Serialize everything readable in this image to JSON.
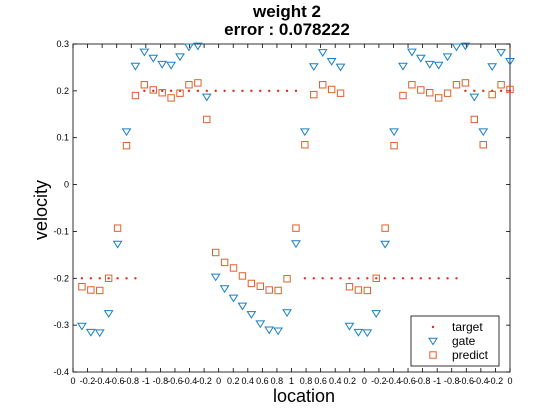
{
  "chart_data": {
    "type": "scatter",
    "title": "weight 2",
    "subtitle": "error : 0.078222",
    "xlabel": "location",
    "ylabel": "velocity",
    "xlim": [
      0,
      49
    ],
    "ylim": [
      -0.4,
      0.3
    ],
    "y_ticks": [
      -0.4,
      -0.3,
      -0.2,
      -0.1,
      0,
      0.1,
      0.2,
      0.3
    ],
    "y_tick_labels": [
      "-0.4",
      "-0.3",
      "-0.2",
      "-0.1",
      "0",
      "0.1",
      "0.2",
      "0.3"
    ],
    "x_tick_labels": [
      "0",
      "-0.2",
      "-0.4",
      "-0.6",
      "-0.8",
      "-1",
      "-0.8",
      "-0.6",
      "-0.4",
      "-0.2",
      "0",
      "0.2",
      "0.4",
      "0.6",
      "0.8",
      "1",
      "0.8",
      "0.6",
      "0.4",
      "0.2",
      "0",
      "-0.2",
      "-0.4",
      "-0.6",
      "-0.8",
      "-1",
      "-0.8",
      "-0.6",
      "-0.4",
      "-0.2",
      "0"
    ],
    "grid": false,
    "legend_position": "bottom-right",
    "series": [
      {
        "name": "target",
        "marker": "dot",
        "color": "#d9301a",
        "x": [
          1,
          2,
          3,
          4,
          5,
          6,
          7,
          8,
          9,
          10,
          11,
          12,
          13,
          14,
          15,
          16,
          17,
          18,
          19,
          20,
          21,
          22,
          23,
          24,
          25,
          26,
          27,
          28,
          29,
          30,
          31,
          32,
          33,
          34,
          35,
          36,
          37,
          38,
          39,
          40,
          41,
          42,
          43,
          44,
          45,
          46,
          47,
          48,
          49
        ],
        "y": [
          -0.2,
          -0.2,
          -0.2,
          -0.2,
          -0.2,
          -0.2,
          -0.2,
          0.2,
          0.2,
          0.2,
          0.2,
          0.2,
          0.2,
          0.2,
          0.2,
          0.2,
          0.2,
          0.2,
          0.2,
          0.2,
          0.2,
          0.2,
          0.2,
          0.2,
          0.2,
          -0.2,
          -0.2,
          -0.2,
          -0.2,
          -0.2,
          -0.2,
          -0.2,
          -0.2,
          -0.2,
          -0.2,
          -0.2,
          -0.2,
          -0.2,
          -0.2,
          -0.2,
          -0.2,
          -0.2,
          -0.2,
          0.2,
          0.2,
          0.2,
          0.2,
          0.2,
          0.2
        ]
      },
      {
        "name": "gate",
        "marker": "triangle-down",
        "color": "#1a7fc1",
        "x": [
          1,
          2,
          3,
          4,
          5,
          6,
          7,
          8,
          9,
          10,
          11,
          12,
          13,
          14,
          15,
          16,
          17,
          18,
          19,
          20,
          21,
          22,
          23,
          24,
          25,
          26,
          27,
          28,
          29,
          30,
          31,
          32,
          33,
          34,
          35,
          36,
          37,
          38,
          39,
          40,
          41,
          42,
          43,
          44,
          45,
          46,
          47,
          48,
          49
        ],
        "y": [
          -0.302,
          -0.315,
          -0.316,
          -0.275,
          -0.127,
          0.113,
          0.253,
          0.283,
          0.27,
          0.257,
          0.255,
          0.273,
          0.294,
          0.296,
          0.187,
          -0.197,
          -0.222,
          -0.242,
          -0.259,
          -0.277,
          -0.297,
          -0.31,
          -0.312,
          -0.273,
          -0.126,
          0.113,
          0.252,
          0.282,
          0.263,
          0.251,
          -0.302,
          -0.315,
          -0.316,
          -0.275,
          -0.127,
          0.113,
          0.253,
          0.283,
          0.27,
          0.257,
          0.255,
          0.273,
          0.294,
          0.296,
          0.187,
          0.113,
          0.252,
          0.282,
          0.263
        ],
        "y_note": ""
      },
      {
        "name": "predict",
        "marker": "square",
        "color": "#e0602c",
        "x": [
          1,
          2,
          3,
          4,
          5,
          6,
          7,
          8,
          9,
          10,
          11,
          12,
          13,
          14,
          15,
          16,
          17,
          18,
          19,
          20,
          21,
          22,
          23,
          24,
          25,
          26,
          27,
          28,
          29,
          30,
          31,
          32,
          33,
          34,
          35,
          36,
          37,
          38,
          39,
          40,
          41,
          42,
          43,
          44,
          45,
          46,
          47,
          48,
          49
        ],
        "y": [
          -0.218,
          -0.225,
          -0.226,
          -0.2,
          -0.093,
          0.083,
          0.19,
          0.213,
          0.202,
          0.196,
          0.185,
          0.195,
          0.213,
          0.217,
          0.139,
          -0.145,
          -0.166,
          -0.178,
          -0.195,
          -0.211,
          -0.217,
          -0.225,
          -0.226,
          -0.201,
          -0.093,
          0.085,
          0.192,
          0.213,
          0.203,
          0.195,
          -0.218,
          -0.225,
          -0.226,
          -0.2,
          -0.093,
          0.083,
          0.19,
          0.213,
          0.202,
          0.196,
          0.185,
          0.195,
          0.213,
          0.217,
          0.139,
          0.085,
          0.192,
          0.213,
          0.203
        ]
      }
    ]
  }
}
